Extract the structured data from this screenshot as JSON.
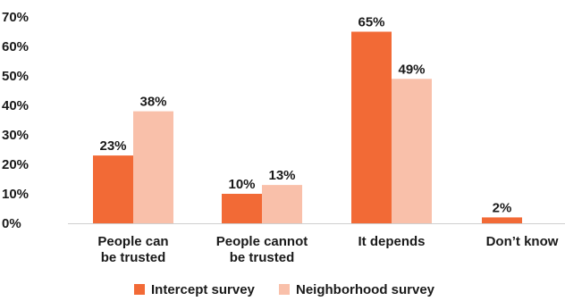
{
  "chart_data": {
    "type": "bar",
    "title": "",
    "xlabel": "",
    "ylabel": "",
    "categories": [
      [
        "People can",
        "be trusted"
      ],
      [
        "People cannot",
        "be trusted"
      ],
      [
        "It depends"
      ],
      [
        "Don’t know"
      ]
    ],
    "series": [
      {
        "name": "Intercept survey",
        "color": "#f26a36",
        "values": [
          23,
          10,
          65,
          2
        ],
        "labels": [
          "23%",
          "10%",
          "65%",
          "2%"
        ]
      },
      {
        "name": "Neighborhood survey",
        "color": "#f9c0aa",
        "values": [
          38,
          13,
          49,
          null
        ],
        "labels": [
          "38%",
          "13%",
          "49%",
          ""
        ]
      }
    ],
    "yticks": [
      0,
      10,
      20,
      30,
      40,
      50,
      60,
      70
    ],
    "ytick_labels": [
      "0%",
      "10%",
      "20%",
      "30%",
      "40%",
      "50%",
      "60%",
      "70%"
    ],
    "ylim": [
      0,
      70
    ],
    "grid": false,
    "legend_position": "bottom-center"
  }
}
